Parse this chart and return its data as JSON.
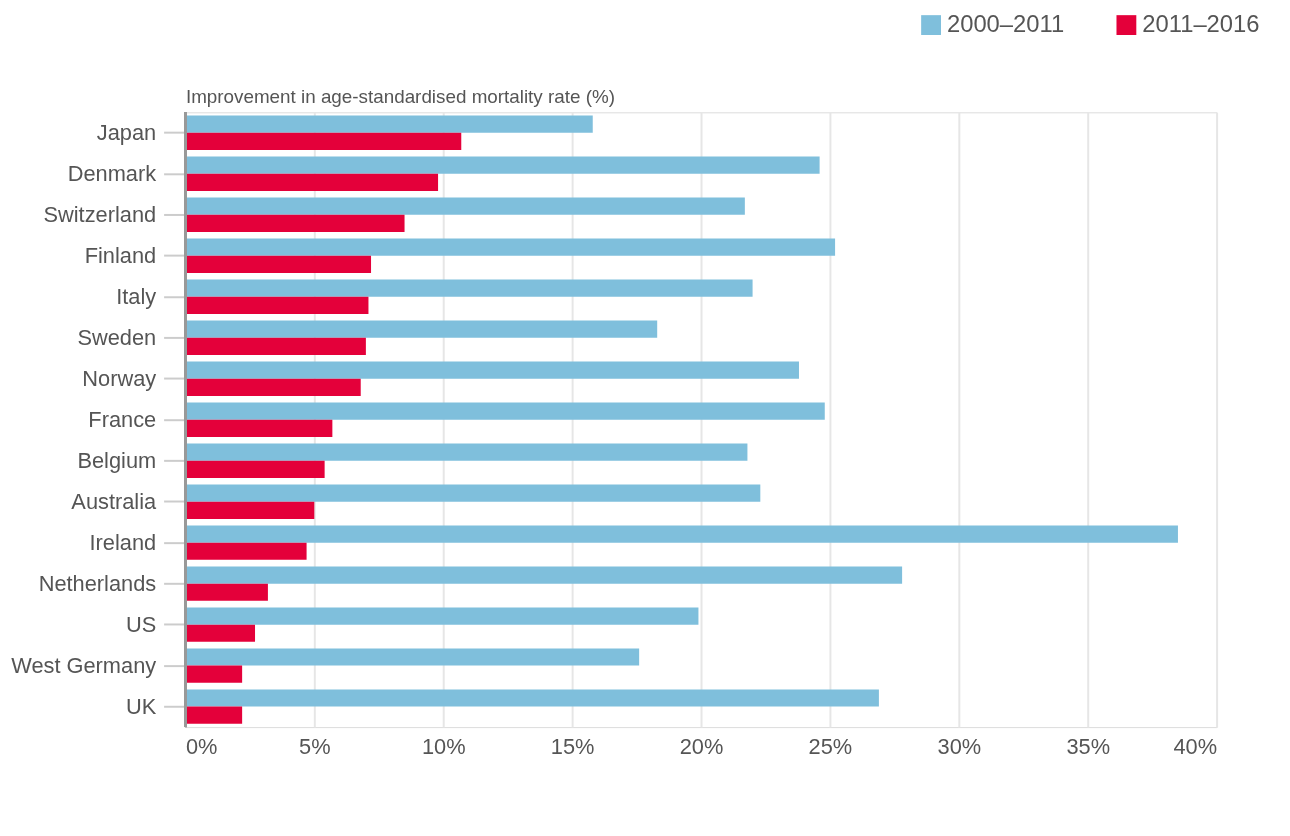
{
  "chart_data": {
    "type": "bar",
    "orientation": "horizontal",
    "xlabel": "Improvement in age-standardised mortality rate (%)",
    "categories": [
      "Japan",
      "Denmark",
      "Switzerland",
      "Finland",
      "Italy",
      "Sweden",
      "Norway",
      "France",
      "Belgium",
      "Australia",
      "Ireland",
      "Netherlands",
      "US",
      "West Germany",
      "UK"
    ],
    "series": [
      {
        "name": "2000–2011",
        "color": "#7fbfdc",
        "values": [
          15.8,
          24.6,
          21.7,
          25.2,
          22.0,
          18.3,
          23.8,
          24.8,
          21.8,
          22.3,
          38.5,
          27.8,
          19.9,
          17.6,
          26.9
        ]
      },
      {
        "name": "2011–2016",
        "color": "#e4003a",
        "values": [
          10.7,
          9.8,
          8.5,
          7.2,
          7.1,
          7.0,
          6.8,
          5.7,
          5.4,
          5.0,
          4.7,
          3.2,
          2.7,
          2.2,
          2.2
        ]
      }
    ],
    "xlim": [
      0,
      40
    ],
    "xticks": [
      {
        "value": 0,
        "label": "0%"
      },
      {
        "value": 5,
        "label": "5%"
      },
      {
        "value": 10,
        "label": "10%"
      },
      {
        "value": 15,
        "label": "15%"
      },
      {
        "value": 20,
        "label": "20%"
      },
      {
        "value": 25,
        "label": "25%"
      },
      {
        "value": 30,
        "label": "30%"
      },
      {
        "value": 35,
        "label": "35%"
      },
      {
        "value": 40,
        "label": "40%"
      }
    ],
    "grid": "x",
    "legend": "top right"
  }
}
